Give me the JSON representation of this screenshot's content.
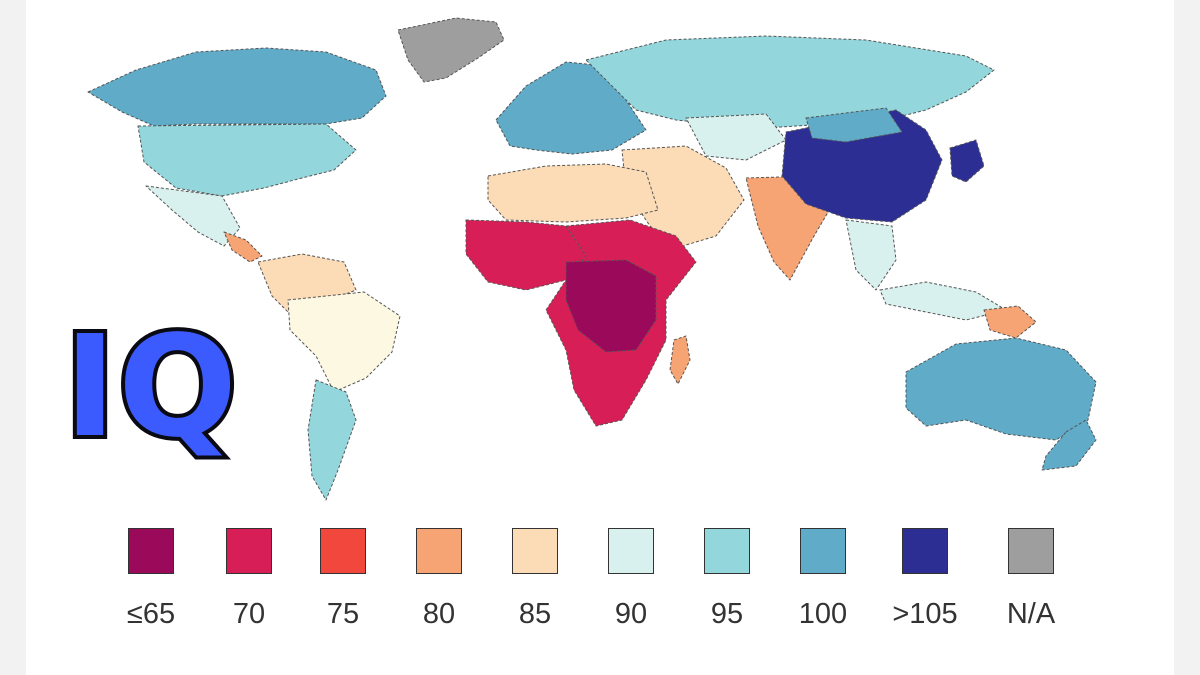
{
  "overlay_label": "IQ",
  "legend": [
    {
      "label": "≤65",
      "color": "#9b0a5a",
      "name": "le65"
    },
    {
      "label": "70",
      "color": "#d81e56",
      "name": "70"
    },
    {
      "label": "75",
      "color": "#f2473c",
      "name": "75"
    },
    {
      "label": "80",
      "color": "#f7a474",
      "name": "80"
    },
    {
      "label": "85",
      "color": "#fbdcb6",
      "name": "85"
    },
    {
      "label": "90",
      "color": "#d8f1ee",
      "name": "90"
    },
    {
      "label": "95",
      "color": "#93d6dc",
      "name": "95"
    },
    {
      "label": "100",
      "color": "#5fabc8",
      "name": "100"
    },
    {
      "label": ">105",
      "color": "#2d2e93",
      "name": "gt105"
    },
    {
      "label": "N/A",
      "color": "#9e9e9e",
      "name": "na"
    }
  ],
  "regions": [
    {
      "name": "greenland",
      "color": "#9e9e9e"
    },
    {
      "name": "canada",
      "color": "#5fabc8"
    },
    {
      "name": "usa",
      "color": "#93d6dc"
    },
    {
      "name": "mexico",
      "color": "#d8f1ee"
    },
    {
      "name": "central-america",
      "color": "#f7a474"
    },
    {
      "name": "south-america-north",
      "color": "#fbdcb6"
    },
    {
      "name": "brazil",
      "color": "#fdf8e2"
    },
    {
      "name": "argentina",
      "color": "#93d6dc"
    },
    {
      "name": "europe",
      "color": "#5fabc8"
    },
    {
      "name": "russia",
      "color": "#93d6dc"
    },
    {
      "name": "central-asia",
      "color": "#d8f1ee"
    },
    {
      "name": "middle-east",
      "color": "#fbdcb6"
    },
    {
      "name": "north-africa",
      "color": "#fbdcb6"
    },
    {
      "name": "west-africa",
      "color": "#d81e56"
    },
    {
      "name": "sub-saharan-africa",
      "color": "#d81e56"
    },
    {
      "name": "central-africa",
      "color": "#9b0a5a"
    },
    {
      "name": "india",
      "color": "#f7a474"
    },
    {
      "name": "china",
      "color": "#2d2e93"
    },
    {
      "name": "mongolia",
      "color": "#5fabc8"
    },
    {
      "name": "japan",
      "color": "#2d2e93"
    },
    {
      "name": "southeast-asia",
      "color": "#d8f1ee"
    },
    {
      "name": "indonesia",
      "color": "#d8f1ee"
    },
    {
      "name": "australia",
      "color": "#5fabc8"
    },
    {
      "name": "new-zealand",
      "color": "#5fabc8"
    },
    {
      "name": "madagascar",
      "color": "#f7a474"
    },
    {
      "name": "papua-new-guinea",
      "color": "#f7a474"
    }
  ]
}
